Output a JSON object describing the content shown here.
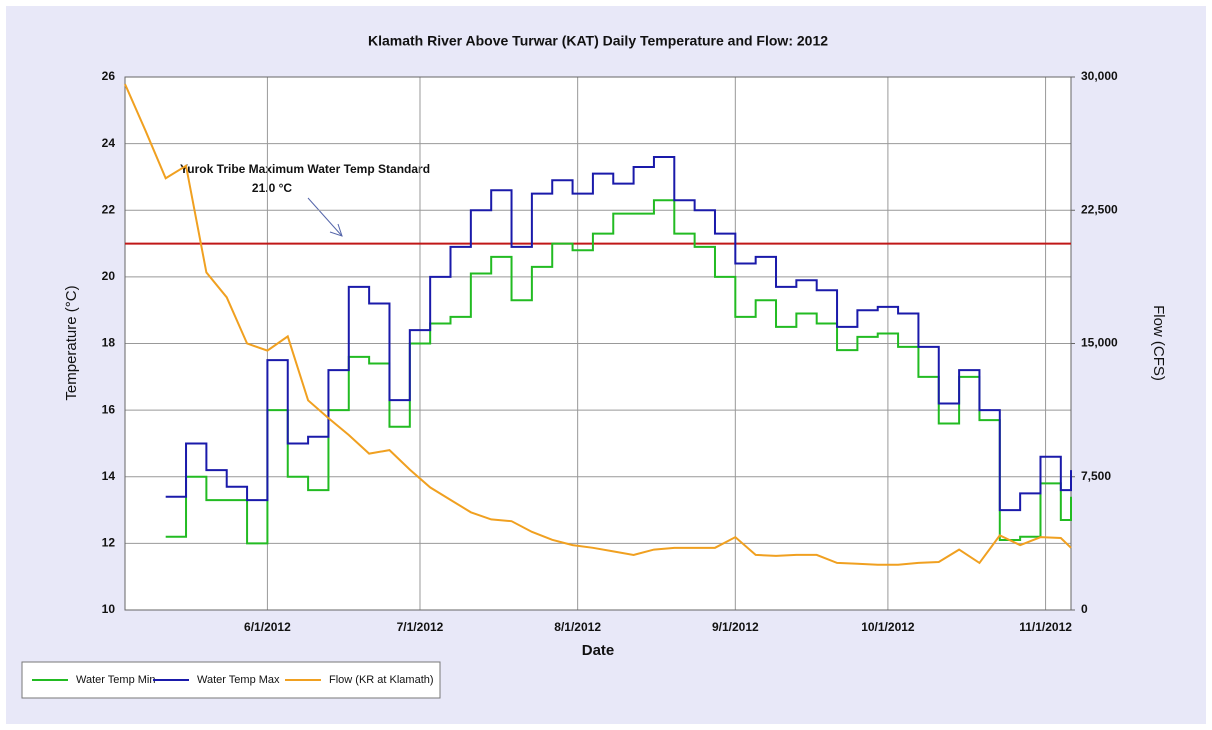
{
  "chart_data": {
    "type": "line",
    "title": "Klamath River Above Turwar (KAT) Daily Temperature and Flow: 2012",
    "xlabel": "Date",
    "ylabel": "Temperature (°C)",
    "y2label": "Flow (CFS)",
    "x": [
      "2012-05-04",
      "2012-05-08",
      "2012-05-12",
      "2012-05-16",
      "2012-05-20",
      "2012-05-24",
      "2012-05-28",
      "2012-06-01",
      "2012-06-05",
      "2012-06-09",
      "2012-06-13",
      "2012-06-17",
      "2012-06-21",
      "2012-06-25",
      "2012-06-29",
      "2012-07-03",
      "2012-07-07",
      "2012-07-11",
      "2012-07-15",
      "2012-07-19",
      "2012-07-23",
      "2012-07-27",
      "2012-07-31",
      "2012-08-04",
      "2012-08-08",
      "2012-08-12",
      "2012-08-16",
      "2012-08-20",
      "2012-08-24",
      "2012-08-28",
      "2012-09-01",
      "2012-09-05",
      "2012-09-09",
      "2012-09-13",
      "2012-09-17",
      "2012-09-21",
      "2012-09-25",
      "2012-09-29",
      "2012-10-03",
      "2012-10-07",
      "2012-10-11",
      "2012-10-15",
      "2012-10-19",
      "2012-10-23",
      "2012-10-27",
      "2012-10-31",
      "2012-11-04",
      "2012-11-06"
    ],
    "series": [
      {
        "name": "Water Temp Min",
        "color": "#22bb22",
        "step": true,
        "values": [
          null,
          null,
          12.2,
          14.0,
          13.3,
          13.3,
          12.0,
          16.0,
          14.0,
          13.6,
          16.0,
          17.6,
          17.4,
          15.5,
          18.0,
          18.6,
          18.8,
          20.1,
          20.6,
          19.3,
          20.3,
          21.0,
          20.8,
          21.3,
          21.9,
          21.9,
          22.3,
          21.3,
          20.9,
          20.0,
          18.8,
          19.3,
          18.5,
          18.9,
          18.6,
          17.8,
          18.2,
          18.3,
          17.9,
          17.0,
          15.6,
          17.0,
          15.7,
          12.1,
          12.2,
          13.8,
          12.7,
          13.4
        ]
      },
      {
        "name": "Water Temp Max",
        "color": "#1a1aaa",
        "step": true,
        "values": [
          null,
          null,
          13.4,
          15.0,
          14.2,
          13.7,
          13.3,
          17.5,
          15.0,
          15.2,
          17.2,
          19.7,
          19.2,
          16.3,
          18.4,
          20.0,
          20.9,
          22.0,
          22.6,
          20.9,
          22.5,
          22.9,
          22.5,
          23.1,
          22.8,
          23.3,
          23.6,
          22.3,
          22.0,
          21.3,
          20.4,
          20.6,
          19.7,
          19.9,
          19.6,
          18.5,
          19.0,
          19.1,
          18.9,
          17.9,
          16.2,
          17.2,
          16.0,
          13.0,
          13.5,
          14.6,
          13.6,
          14.2
        ]
      },
      {
        "name": "Flow (KR at Klamath)",
        "color": "#f0a020",
        "axis": "y2",
        "values": [
          29600,
          27000,
          24300,
          25000,
          19000,
          17600,
          15000,
          14600,
          15400,
          11800,
          10800,
          9850,
          8800,
          9000,
          7900,
          6900,
          6200,
          5500,
          5100,
          5000,
          4400,
          3950,
          3650,
          3500,
          3300,
          3100,
          3400,
          3500,
          3500,
          3500,
          4100,
          3100,
          3050,
          3100,
          3100,
          2650,
          2600,
          2550,
          2550,
          2650,
          2700,
          3400,
          2650,
          4200,
          3650,
          4100,
          4050,
          3500
        ]
      }
    ],
    "xlim": [
      "2012-05-04",
      "2012-11-06"
    ],
    "xticks": [
      {
        "value": "2012-06-01",
        "label": "6/1/2012"
      },
      {
        "value": "2012-07-01",
        "label": "7/1/2012"
      },
      {
        "value": "2012-08-01",
        "label": "8/1/2012"
      },
      {
        "value": "2012-09-01",
        "label": "9/1/2012"
      },
      {
        "value": "2012-10-01",
        "label": "10/1/2012"
      },
      {
        "value": "2012-11-01",
        "label": "11/1/2012"
      }
    ],
    "ylim": [
      10,
      26
    ],
    "yticks": [
      10,
      12,
      14,
      16,
      18,
      20,
      22,
      24,
      26
    ],
    "y2lim": [
      0,
      30000
    ],
    "y2ticks": [
      0,
      {
        "value": 7500,
        "label": "7,500"
      },
      {
        "value": 15000,
        "label": "15,000"
      },
      {
        "value": 22500,
        "label": "22,500"
      },
      {
        "value": 30000,
        "label": "30,000"
      }
    ],
    "grid": true,
    "reference_line": {
      "value": 21.0,
      "color": "#c01818"
    },
    "annotation": [
      "Yurok Tribe Maximum Water Temp Standard",
      "21.0 °C"
    ],
    "legend": "bottom-left"
  }
}
